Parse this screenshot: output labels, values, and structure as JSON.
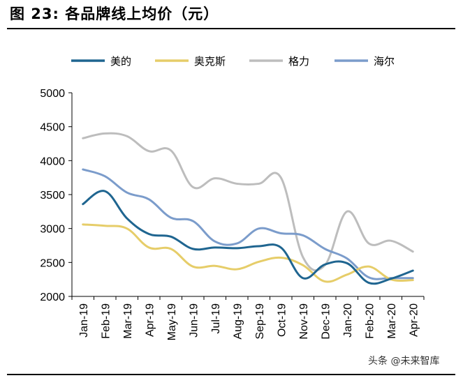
{
  "header": {
    "title": "图 23: 各品牌线上均价（元）"
  },
  "watermark": "头条 @未来智库",
  "chart_data": {
    "type": "line",
    "title": "图 23: 各品牌线上均价（元）",
    "xlabel": "",
    "ylabel": "",
    "categories": [
      "Jan-19",
      "Feb-19",
      "Mar-19",
      "Apr-19",
      "May-19",
      "Jun-19",
      "Jul-19",
      "Aug-19",
      "Sep-19",
      "Oct-19",
      "Nov-19",
      "Dec-19",
      "Jan-20",
      "Feb-20",
      "Mar-20",
      "Apr-20"
    ],
    "ylim": [
      2000,
      5000
    ],
    "yticks": [
      2000,
      2500,
      3000,
      3500,
      4000,
      4500,
      5000
    ],
    "grid": false,
    "legend_position": "top",
    "series": [
      {
        "name": "美的",
        "color": "#1f6590",
        "values": [
          3360,
          3550,
          3150,
          2920,
          2880,
          2700,
          2720,
          2710,
          2740,
          2720,
          2270,
          2470,
          2490,
          2200,
          2260,
          2380
        ]
      },
      {
        "name": "奥克斯",
        "color": "#e6cd69",
        "values": [
          3060,
          3040,
          3000,
          2720,
          2700,
          2440,
          2450,
          2400,
          2510,
          2570,
          2460,
          2220,
          2320,
          2440,
          2250,
          2240
        ]
      },
      {
        "name": "格力",
        "color": "#bdbdbd",
        "values": [
          4330,
          4400,
          4360,
          4140,
          4150,
          3610,
          3740,
          3660,
          3660,
          3750,
          2580,
          2460,
          3250,
          2780,
          2820,
          2660
        ]
      },
      {
        "name": "海尔",
        "color": "#7b9ccb",
        "values": [
          3870,
          3770,
          3530,
          3430,
          3160,
          3110,
          2810,
          2780,
          3000,
          2930,
          2900,
          2700,
          2560,
          2280,
          2270,
          2270
        ]
      }
    ]
  }
}
